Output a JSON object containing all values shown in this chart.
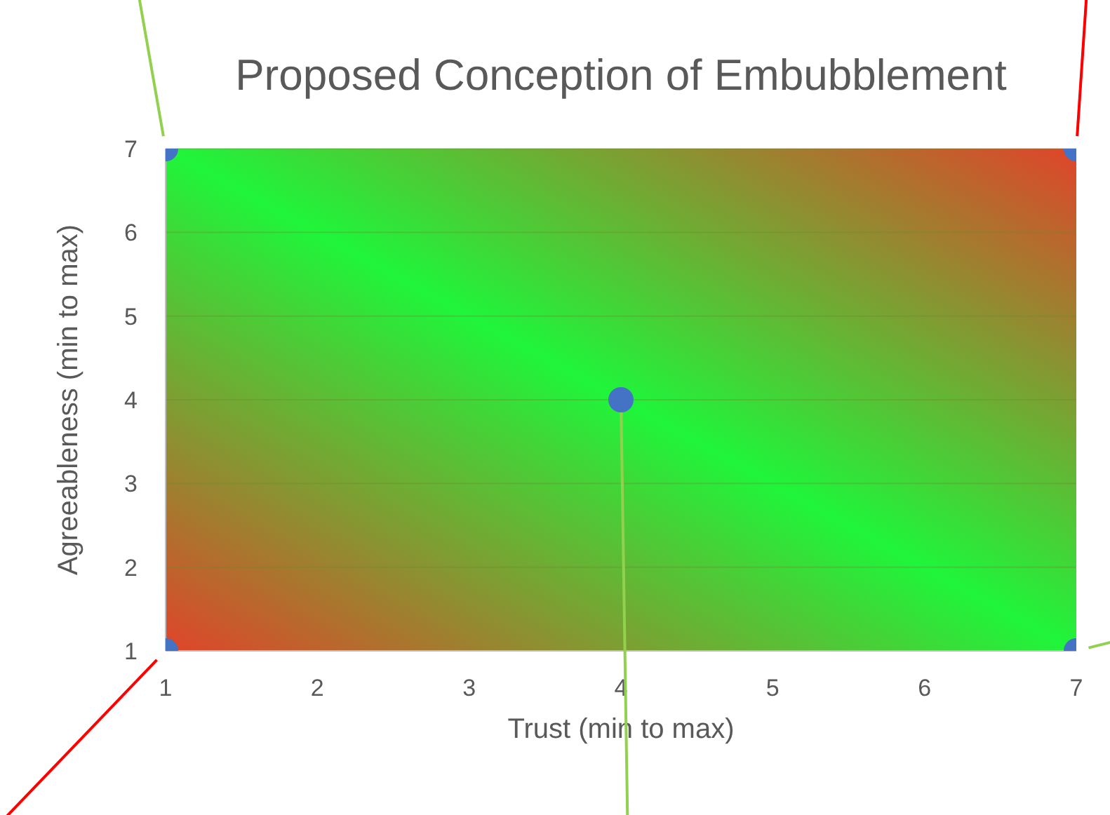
{
  "chart_data": {
    "type": "scatter",
    "title": "Proposed Conception of Embubblement",
    "xlabel": "Trust (min to max)",
    "ylabel": "Agreeableness (min to max)",
    "x": [
      1,
      7,
      4,
      1,
      7
    ],
    "series": [
      {
        "color": "#4472c4",
        "values": [
          7,
          7,
          4,
          1,
          1
        ]
      }
    ],
    "xlim": [
      1,
      7
    ],
    "ylim": [
      1,
      7
    ],
    "xticks": [
      1,
      2,
      3,
      4,
      5,
      6,
      7
    ],
    "yticks": [
      1,
      2,
      3,
      4,
      5,
      6,
      7
    ],
    "grid": "y",
    "marker": "circle"
  }
}
